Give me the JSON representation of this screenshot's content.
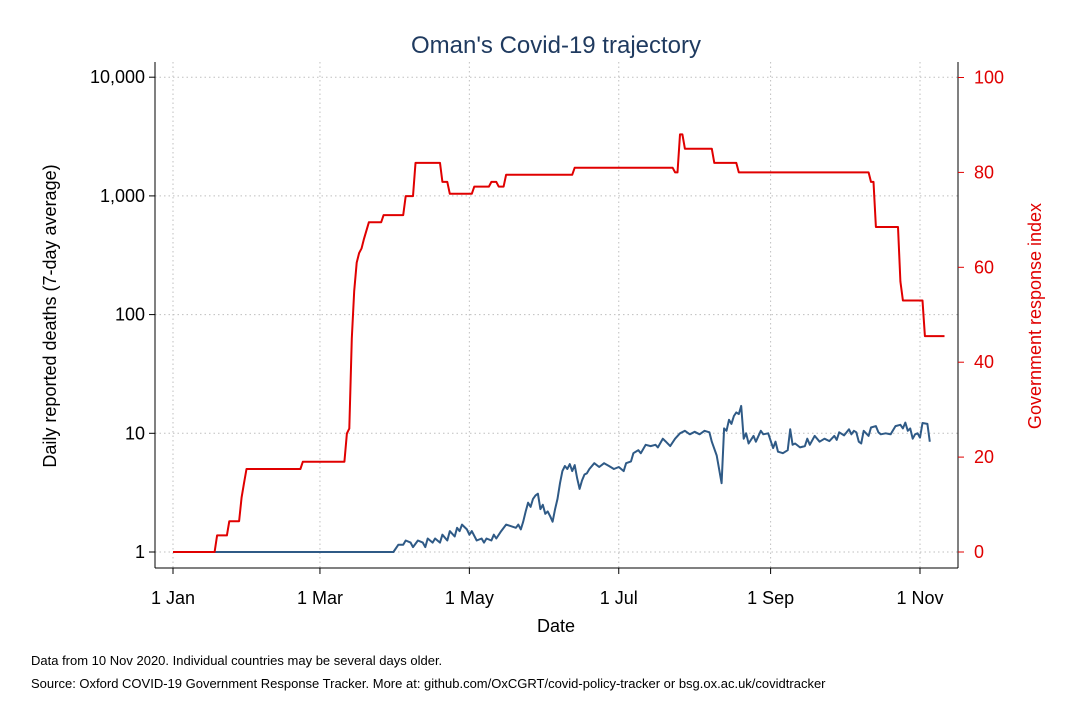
{
  "chart_data": {
    "type": "line",
    "title": "Oman's Covid-19 trajectory",
    "xlabel": "Date",
    "ylabel_left": "Daily reported deaths (7-day average)",
    "ylabel_right": "Government response index",
    "x_ticks": [
      "1 Jan",
      "1 Mar",
      "1 May",
      "1 Jul",
      "1 Sep",
      "1 Nov"
    ],
    "x_tick_days": [
      0,
      60,
      121,
      182,
      244,
      305
    ],
    "x_range_days": [
      -6,
      320
    ],
    "y_left_ticks": [
      "1",
      "10",
      "100",
      "1,000",
      "10,000"
    ],
    "y_left_scale": "log",
    "y_left_range": [
      1,
      10000
    ],
    "y_right_ticks": [
      "0",
      "20",
      "40",
      "60",
      "80",
      "100"
    ],
    "y_right_range": [
      0,
      100
    ],
    "grid": true,
    "colors": {
      "deaths": "#2f5a86",
      "response_index": "#e00000",
      "right_axis": "#e00000",
      "title": "#1f3a5f"
    },
    "series": [
      {
        "axis": "left",
        "points": [
          [
            0,
            1
          ],
          [
            90,
            1
          ],
          [
            92,
            1.15
          ],
          [
            94,
            1.15
          ],
          [
            95,
            1.25
          ],
          [
            97,
            1.2
          ],
          [
            98,
            1.1
          ],
          [
            100,
            1.25
          ],
          [
            102,
            1.2
          ],
          [
            103,
            1.1
          ],
          [
            104,
            1.3
          ],
          [
            106,
            1.2
          ],
          [
            107,
            1.3
          ],
          [
            109,
            1.2
          ],
          [
            110,
            1.4
          ],
          [
            112,
            1.25
          ],
          [
            113,
            1.5
          ],
          [
            115,
            1.35
          ],
          [
            116,
            1.6
          ],
          [
            117,
            1.5
          ],
          [
            118,
            1.7
          ],
          [
            120,
            1.55
          ],
          [
            121,
            1.4
          ],
          [
            122,
            1.5
          ],
          [
            124,
            1.25
          ],
          [
            126,
            1.3
          ],
          [
            127,
            1.2
          ],
          [
            128,
            1.3
          ],
          [
            130,
            1.25
          ],
          [
            131,
            1.4
          ],
          [
            132,
            1.3
          ],
          [
            134,
            1.5
          ],
          [
            136,
            1.7
          ],
          [
            138,
            1.65
          ],
          [
            140,
            1.6
          ],
          [
            141,
            1.7
          ],
          [
            142,
            1.55
          ],
          [
            143,
            1.8
          ],
          [
            144,
            2.2
          ],
          [
            145,
            2.6
          ],
          [
            146,
            2.4
          ],
          [
            147,
            2.8
          ],
          [
            148,
            3
          ],
          [
            149,
            3.1
          ],
          [
            150,
            2.3
          ],
          [
            151,
            2.5
          ],
          [
            152,
            2.1
          ],
          [
            153,
            2.2
          ],
          [
            154,
            2
          ],
          [
            155,
            1.8
          ],
          [
            156,
            2.3
          ],
          [
            157,
            2.8
          ],
          [
            158,
            3.8
          ],
          [
            159,
            4.8
          ],
          [
            160,
            5.3
          ],
          [
            161,
            5
          ],
          [
            162,
            5.5
          ],
          [
            163,
            4.8
          ],
          [
            164,
            5.4
          ],
          [
            165,
            4.2
          ],
          [
            166,
            3.4
          ],
          [
            167,
            4
          ],
          [
            168,
            4.5
          ],
          [
            169,
            4.6
          ],
          [
            170,
            5
          ],
          [
            172,
            5.6
          ],
          [
            174,
            5.2
          ],
          [
            176,
            5.6
          ],
          [
            178,
            5.3
          ],
          [
            180,
            5
          ],
          [
            182,
            5.2
          ],
          [
            184,
            4.8
          ],
          [
            185,
            5.6
          ],
          [
            187,
            5.8
          ],
          [
            188,
            6.8
          ],
          [
            190,
            7.2
          ],
          [
            191,
            6.8
          ],
          [
            193,
            8
          ],
          [
            195,
            7.8
          ],
          [
            197,
            8
          ],
          [
            198,
            7.6
          ],
          [
            200,
            9
          ],
          [
            201,
            8.6
          ],
          [
            203,
            7.8
          ],
          [
            205,
            9
          ],
          [
            207,
            10
          ],
          [
            209,
            10.5
          ],
          [
            211,
            9.8
          ],
          [
            213,
            10.3
          ],
          [
            215,
            9.8
          ],
          [
            217,
            10.5
          ],
          [
            219,
            10.2
          ],
          [
            220,
            8.5
          ],
          [
            222,
            6.5
          ],
          [
            224,
            3.8
          ],
          [
            225,
            11
          ],
          [
            226,
            10.5
          ],
          [
            227,
            13
          ],
          [
            228,
            12
          ],
          [
            229,
            14
          ],
          [
            230,
            15
          ],
          [
            231,
            14.5
          ],
          [
            232,
            17
          ],
          [
            233,
            9
          ],
          [
            234,
            10
          ],
          [
            235,
            8.2
          ],
          [
            237,
            9.5
          ],
          [
            238,
            8.5
          ],
          [
            240,
            10.5
          ],
          [
            241,
            9.8
          ],
          [
            243,
            10
          ],
          [
            245,
            7.5
          ],
          [
            246,
            8.5
          ],
          [
            247,
            7
          ],
          [
            249,
            6.8
          ],
          [
            251,
            7.2
          ],
          [
            252,
            10.8
          ],
          [
            253,
            8
          ],
          [
            254,
            8.2
          ],
          [
            256,
            7.6
          ],
          [
            258,
            7.8
          ],
          [
            259,
            9
          ],
          [
            260,
            8
          ],
          [
            262,
            9.5
          ],
          [
            264,
            8.5
          ],
          [
            266,
            9
          ],
          [
            268,
            8.6
          ],
          [
            270,
            9.5
          ],
          [
            271,
            8.8
          ],
          [
            272,
            10.2
          ],
          [
            274,
            9.6
          ],
          [
            276,
            10.8
          ],
          [
            277,
            9.8
          ],
          [
            278,
            10.5
          ],
          [
            279,
            10.2
          ],
          [
            280,
            8.5
          ],
          [
            281,
            8.2
          ],
          [
            282,
            10.5
          ],
          [
            284,
            9.5
          ],
          [
            285,
            11.2
          ],
          [
            287,
            11.5
          ],
          [
            288,
            10.2
          ],
          [
            289,
            9.8
          ],
          [
            291,
            10
          ],
          [
            293,
            9.8
          ],
          [
            295,
            11.5
          ],
          [
            297,
            11.8
          ],
          [
            298,
            11
          ],
          [
            299,
            12.3
          ],
          [
            300,
            10.5
          ],
          [
            301,
            11
          ],
          [
            302,
            9
          ],
          [
            303,
            9.8
          ],
          [
            304,
            10
          ],
          [
            305,
            9.2
          ],
          [
            306,
            12.2
          ],
          [
            308,
            12
          ],
          [
            309,
            8.5
          ]
        ]
      },
      {
        "axis": "right",
        "points": [
          [
            0,
            0
          ],
          [
            17,
            0
          ],
          [
            18,
            3.5
          ],
          [
            22,
            3.5
          ],
          [
            23,
            6.5
          ],
          [
            27,
            6.5
          ],
          [
            28,
            11.5
          ],
          [
            29,
            14.5
          ],
          [
            30,
            17.5
          ],
          [
            52,
            17.5
          ],
          [
            53,
            19
          ],
          [
            70,
            19
          ],
          [
            71,
            25
          ],
          [
            72,
            26
          ],
          [
            73,
            45
          ],
          [
            74,
            55
          ],
          [
            75,
            61
          ],
          [
            76,
            63
          ],
          [
            77,
            64
          ],
          [
            78,
            66
          ],
          [
            80,
            69.5
          ],
          [
            85,
            69.5
          ],
          [
            86,
            71
          ],
          [
            94,
            71
          ],
          [
            95,
            75
          ],
          [
            98,
            75
          ],
          [
            99,
            82
          ],
          [
            109,
            82
          ],
          [
            110,
            78
          ],
          [
            112,
            78
          ],
          [
            113,
            75.5
          ],
          [
            122,
            75.5
          ],
          [
            123,
            77
          ],
          [
            129,
            77
          ],
          [
            130,
            78
          ],
          [
            132,
            78
          ],
          [
            133,
            77
          ],
          [
            135,
            77
          ],
          [
            136,
            79.5
          ],
          [
            163,
            79.5
          ],
          [
            164,
            81
          ],
          [
            204,
            81
          ],
          [
            205,
            80
          ],
          [
            206,
            80
          ],
          [
            207,
            88
          ],
          [
            208,
            88
          ],
          [
            209,
            85
          ],
          [
            220,
            85
          ],
          [
            221,
            82
          ],
          [
            230,
            82
          ],
          [
            231,
            80
          ],
          [
            284,
            80
          ],
          [
            285,
            78
          ],
          [
            286,
            78
          ],
          [
            287,
            68.5
          ],
          [
            296,
            68.5
          ],
          [
            297,
            57
          ],
          [
            298,
            53
          ],
          [
            306,
            53
          ],
          [
            307,
            45.5
          ],
          [
            315,
            45.5
          ]
        ]
      }
    ],
    "notes": [
      "Data from 10 Nov 2020. Individual countries may be several days older.",
      "Source: Oxford COVID-19 Government Response Tracker. More at: github.com/OxCGRT/covid-policy-tracker or bsg.ox.ac.uk/covidtracker"
    ]
  }
}
